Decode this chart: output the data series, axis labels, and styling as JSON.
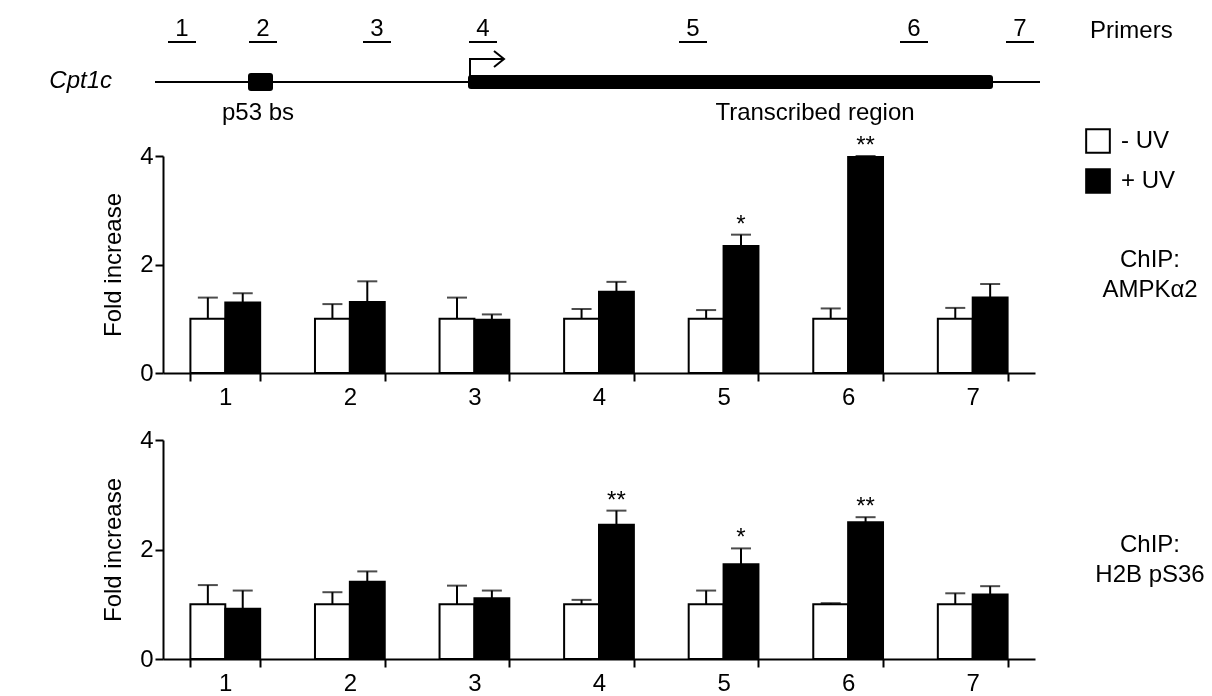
{
  "chart_data": [
    {
      "type": "bar",
      "ylabel": "Fold increase",
      "categories": [
        "1",
        "2",
        "3",
        "4",
        "5",
        "6",
        "7"
      ],
      "ylim": [
        0,
        4
      ],
      "yticks": [
        0,
        2,
        4
      ],
      "legend": "right",
      "grid": false,
      "series": [
        {
          "name": "- UV",
          "color": "#ffffff",
          "values": [
            1,
            1,
            1,
            1,
            1,
            1,
            1
          ],
          "errors": [
            [
              1,
              1.39
            ],
            [
              1,
              1.27
            ],
            [
              1,
              1.39
            ],
            [
              1,
              1.18
            ],
            [
              1,
              1.16
            ],
            [
              1,
              1.19
            ],
            [
              1,
              1.2
            ]
          ]
        },
        {
          "name": "+ UV",
          "color": "#000000",
          "values": [
            1.3,
            1.31,
            0.98,
            1.5,
            2.34,
            3.98,
            1.39
          ],
          "errors": [
            [
              1.3,
              1.47
            ],
            [
              1.31,
              1.69
            ],
            [
              0.98,
              1.08
            ],
            [
              1.5,
              1.68
            ],
            [
              2.34,
              2.55
            ],
            [
              3.98,
              4.0
            ],
            [
              1.39,
              1.64
            ]
          ]
        }
      ],
      "annotations": [
        {
          "text": "*",
          "x": "5",
          "y": 2.34
        },
        {
          "text": "**",
          "x": "6",
          "y": 3.98
        },
        "ChIP:\nAMPKα2",
        "Primers",
        "Cpt1c",
        "p53 bs",
        "Transcribed region"
      ]
    },
    {
      "type": "bar",
      "ylabel": "Fold increase",
      "categories": [
        "1",
        "2",
        "3",
        "4",
        "5",
        "6",
        "7"
      ],
      "ylim": [
        0,
        4
      ],
      "yticks": [
        0,
        2,
        4
      ],
      "grid": false,
      "series": [
        {
          "color": "#ffffff",
          "values": [
            1,
            1,
            1,
            1,
            1,
            1,
            1
          ],
          "errors": [
            [
              1,
              1.35
            ],
            [
              1,
              1.22
            ],
            [
              1,
              1.34
            ],
            [
              1,
              1.08
            ],
            [
              1,
              1.25
            ],
            [
              1,
              1.02
            ],
            [
              1,
              1.2
            ]
          ]
        },
        {
          "color": "#000000",
          "values": [
            0.92,
            1.41,
            1.11,
            2.45,
            1.73,
            2.5,
            1.18
          ],
          "errors": [
            [
              0.92,
              1.25
            ],
            [
              1.41,
              1.6
            ],
            [
              1.11,
              1.25
            ],
            [
              2.45,
              2.71
            ],
            [
              1.73,
              2.02
            ],
            [
              2.5,
              2.59
            ],
            [
              1.18,
              1.33
            ]
          ]
        }
      ],
      "annotations": [
        {
          "text": "**",
          "x": "4",
          "y": 2.45
        },
        {
          "text": "*",
          "x": "5",
          "y": 1.73
        },
        {
          "text": "**",
          "x": "6",
          "y": 2.5
        },
        "ChIP:\nH2B pS36"
      ]
    }
  ]
}
